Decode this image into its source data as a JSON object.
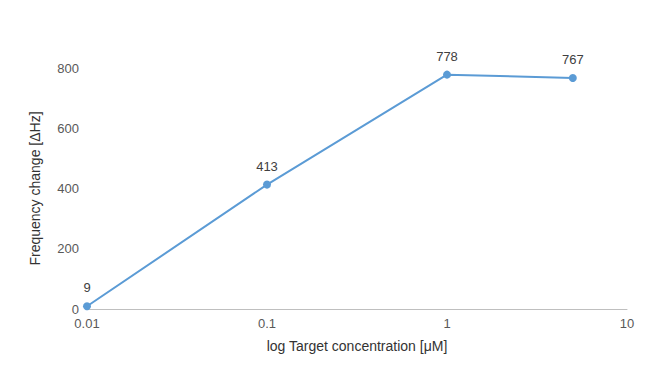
{
  "chart_data": {
    "type": "line",
    "x_label": "log Target concentration [μM]",
    "y_label": "Frequency change [ΔHz]",
    "x": [
      0.01,
      0.1,
      1,
      5
    ],
    "values": [
      9,
      413,
      778,
      767
    ],
    "color": "#5b9bd5",
    "marker": "circle",
    "data_labels": true,
    "log": "x",
    "xlim": [
      0.01,
      10
    ],
    "xticks": [
      0.01,
      0.1,
      1,
      10
    ],
    "ylim": [
      0,
      800
    ],
    "yticks": [
      0,
      200,
      400,
      600,
      800
    ],
    "grid": false
  }
}
